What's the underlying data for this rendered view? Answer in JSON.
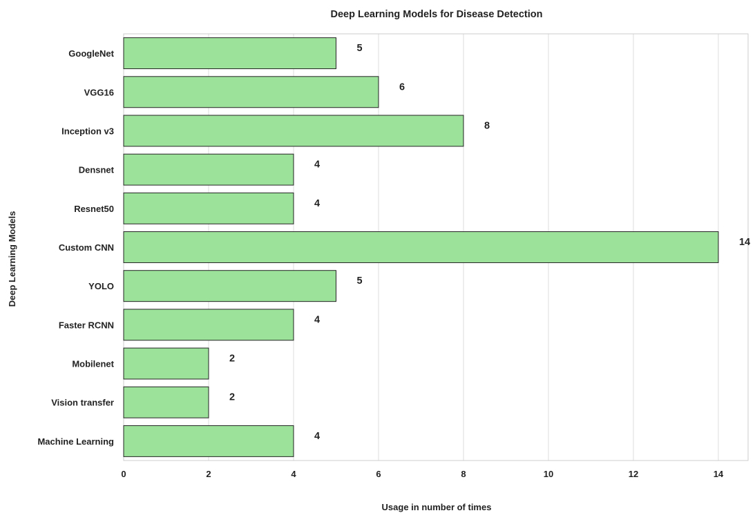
{
  "chart_data": {
    "type": "bar",
    "orientation": "horizontal",
    "title": "Deep Learning Models for Disease Detection",
    "xlabel": "Usage in number of times",
    "ylabel": "Deep Learning Models",
    "categories": [
      "GoogleNet",
      "VGG16",
      "Inception v3",
      "Densnet",
      "Resnet50",
      "Custom CNN",
      "YOLO",
      "Faster RCNN",
      "Mobilenet",
      "Vision transfer",
      "Machine Learning"
    ],
    "values": [
      5,
      6,
      8,
      4,
      4,
      14,
      5,
      4,
      2,
      2,
      4
    ],
    "xticks": [
      0,
      2,
      4,
      6,
      8,
      10,
      12,
      14
    ],
    "xlim": [
      0,
      14.7
    ],
    "grid": "vertical",
    "bar_color": "#9de29b",
    "bar_edge_color": "#222222",
    "data_labels": true
  }
}
